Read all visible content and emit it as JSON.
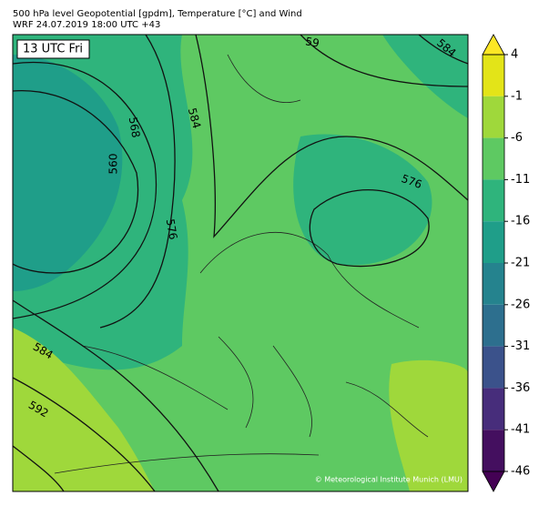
{
  "header": {
    "title_line1": "500 hPa level Geopotential [gpdm], Temperature [°C] and Wind",
    "title_line2": "WRF 24.07.2019 18:00 UTC +43"
  },
  "map": {
    "time_label": "13 UTC Fri",
    "contour_labels": [
      "59",
      "584",
      "568",
      "560",
      "584",
      "576",
      "576",
      "584",
      "592"
    ],
    "credit": "© Meteorological Institute Munich (LMU)"
  },
  "colorbar": {
    "ticks": [
      4,
      -1,
      -6,
      -11,
      -16,
      -21,
      -26,
      -31,
      -36,
      -41,
      -46
    ],
    "colors": [
      "#e3e418",
      "#9fd83b",
      "#5ec962",
      "#2fb47c",
      "#1f9e89",
      "#25838e",
      "#2d6f8e",
      "#3b528b",
      "#472d7b",
      "#440f5f"
    ],
    "extend_colors": [
      "#fde725",
      "#440154"
    ]
  }
}
